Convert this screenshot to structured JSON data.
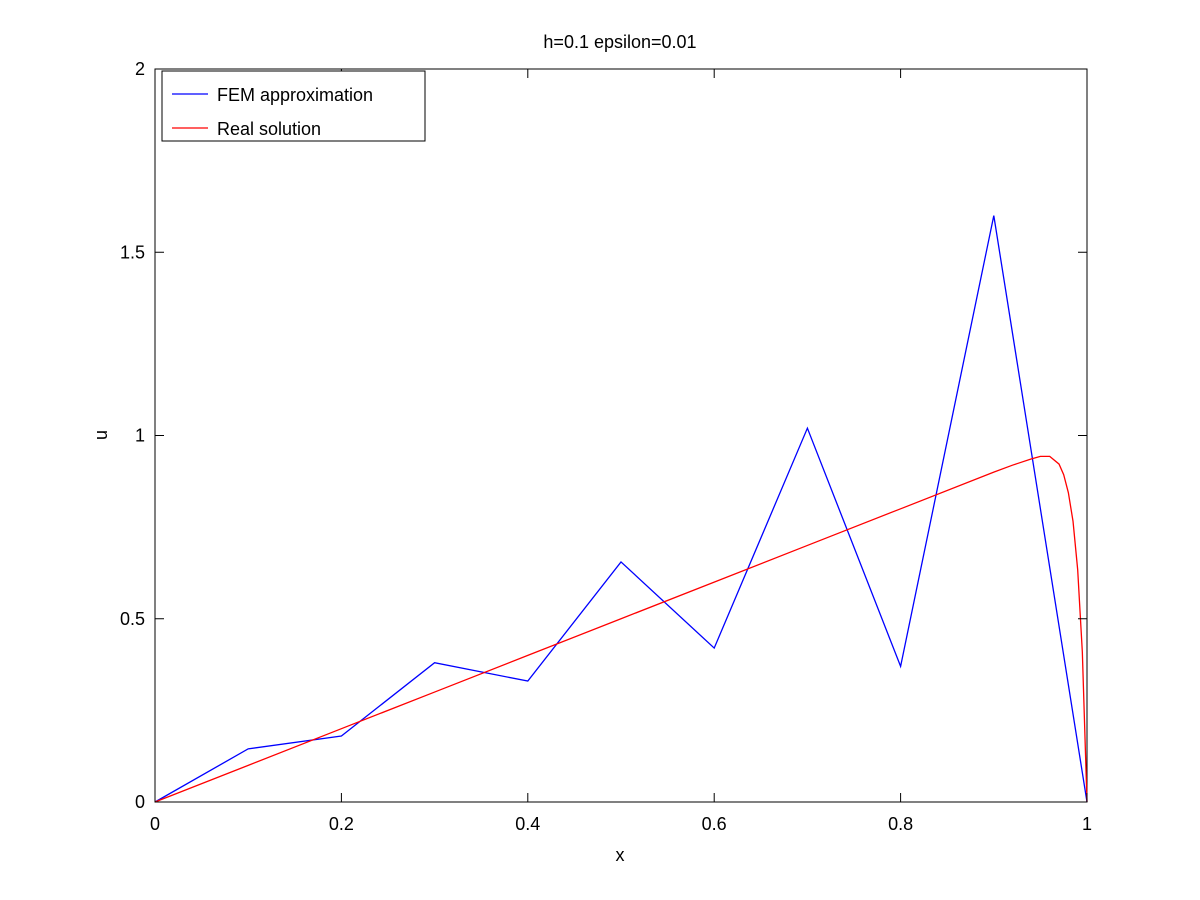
{
  "chart_data": {
    "type": "line",
    "title": "h=0.1 epsilon=0.01",
    "xlabel": "x",
    "ylabel": "u",
    "xlim": [
      0,
      1
    ],
    "ylim": [
      0,
      2
    ],
    "xticks": [
      0,
      0.2,
      0.4,
      0.6,
      0.8,
      1
    ],
    "xtick_labels": [
      "0",
      "0.2",
      "0.4",
      "0.6",
      "0.8",
      "1"
    ],
    "yticks": [
      0,
      0.5,
      1,
      1.5,
      2
    ],
    "ytick_labels": [
      "0",
      "0.5",
      "1",
      "1.5",
      "2"
    ],
    "grid": false,
    "legend_position": "top-left",
    "series": [
      {
        "name": "FEM approximation",
        "color": "#0000ff",
        "x": [
          0,
          0.1,
          0.2,
          0.3,
          0.4,
          0.5,
          0.6,
          0.7,
          0.8,
          0.9,
          1.0
        ],
        "y": [
          0,
          0.145,
          0.18,
          0.38,
          0.33,
          0.655,
          0.42,
          1.02,
          0.37,
          1.6,
          0
        ]
      },
      {
        "name": "Real solution",
        "color": "#ff0000",
        "x": [
          0,
          0.1,
          0.2,
          0.3,
          0.4,
          0.5,
          0.6,
          0.7,
          0.8,
          0.9,
          0.92,
          0.94,
          0.95,
          0.96,
          0.97,
          0.975,
          0.98,
          0.985,
          0.99,
          0.995,
          1.0
        ],
        "y": [
          0,
          0.1,
          0.2,
          0.3,
          0.4,
          0.5,
          0.6,
          0.7,
          0.8,
          0.9,
          0.919,
          0.936,
          0.943,
          0.943,
          0.922,
          0.893,
          0.844,
          0.766,
          0.634,
          0.409,
          0
        ]
      }
    ]
  }
}
